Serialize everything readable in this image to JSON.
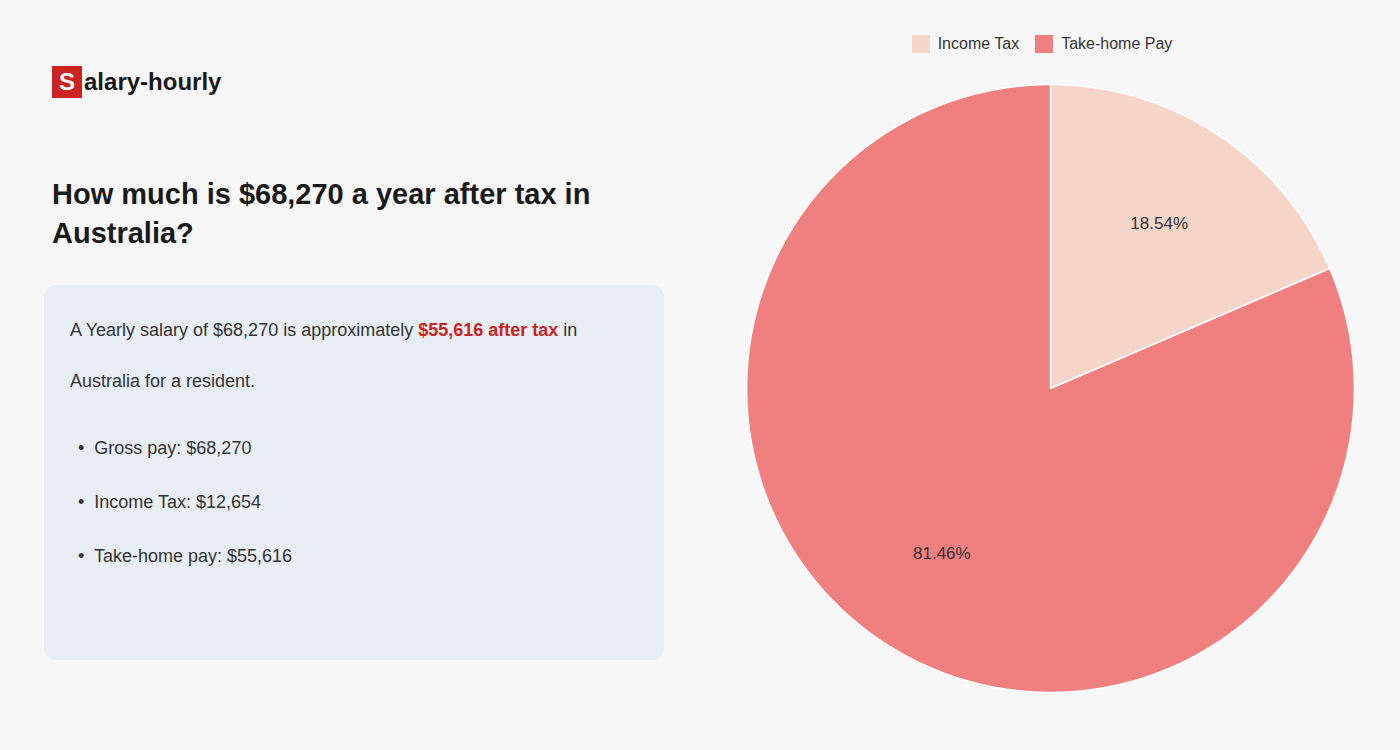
{
  "chart_data": {
    "type": "pie",
    "title": "How much is $68,270 a year after tax in\nAustralia?",
    "categories": [
      "Income Tax",
      "Take-home Pay"
    ],
    "values": [
      18.54,
      81.46
    ],
    "value_labels": [
      "18.54%",
      "81.46%"
    ],
    "colors": [
      "#f5d5c8",
      "#f08080"
    ],
    "data_labels": true,
    "legend": "top",
    "annotations": [
      {
        "text": "S",
        "color": "#cc2222"
      },
      {
        "text": "alary-hourly"
      },
      {
        "text": "A Yearly salary of $68,270 is approximately "
      },
      {
        "text": "$55,616 after tax",
        "color": "#cc2222"
      },
      {
        "text": " in"
      },
      {
        "text": "Australia for a resident."
      },
      {
        "text": "•  Gross pay: $68,270"
      },
      {
        "text": "•  Income Tax: $12,654"
      },
      {
        "text": "•  Take-home pay: $55,616"
      }
    ]
  }
}
